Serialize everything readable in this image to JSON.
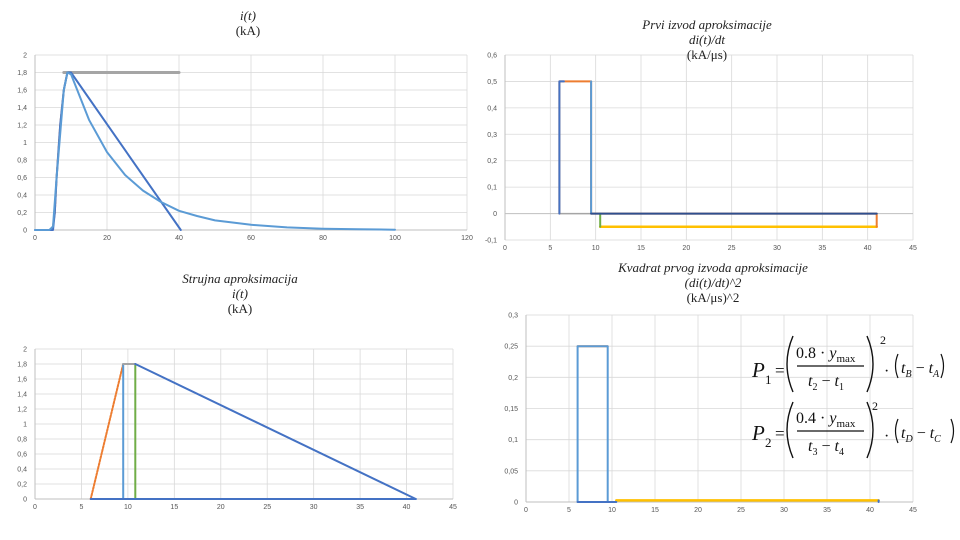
{
  "chart_data": [
    {
      "id": "c1",
      "type": "line",
      "title_lines": [
        "i(t)",
        "(kA)"
      ],
      "xlim": [
        0,
        120
      ],
      "ylim": [
        0,
        2
      ],
      "x_ticks": [
        "0",
        "20",
        "40",
        "60",
        "80",
        "100",
        "120"
      ],
      "y_ticks": [
        "0",
        "0,2",
        "0,4",
        "0,6",
        "0,8",
        "1",
        "1,2",
        "1,4",
        "1,6",
        "1,8",
        "2"
      ],
      "series": [
        {
          "color": "#a5a5a5",
          "width": 3,
          "points": [
            [
              8,
              1.8
            ],
            [
              40,
              1.8
            ]
          ]
        },
        {
          "color": "#ed7d31",
          "width": 2,
          "dash": "2,1.5",
          "points": [
            [
              4,
              0.0
            ],
            [
              4.5,
              0.01
            ],
            [
              5,
              0.04
            ],
            [
              5.5,
              0.2
            ],
            [
              6,
              0.6
            ],
            [
              7,
              1.2
            ],
            [
              8,
              1.6
            ],
            [
              9,
              1.8
            ],
            [
              10,
              1.8
            ]
          ]
        },
        {
          "color": "#4472c4",
          "width": 2,
          "points": [
            [
              0,
              0.0
            ],
            [
              5,
              0.0
            ],
            [
              5.5,
              0.2
            ],
            [
              6,
              0.6
            ],
            [
              7,
              1.2
            ],
            [
              8,
              1.6
            ],
            [
              9,
              1.8
            ],
            [
              10,
              1.8
            ],
            [
              40.5,
              0.0
            ]
          ]
        },
        {
          "color": "#5b9bd5",
          "width": 2,
          "points": [
            [
              0,
              0.0
            ],
            [
              4,
              0.0
            ],
            [
              5,
              0.04
            ],
            [
              6,
              0.6
            ],
            [
              8,
              1.6
            ],
            [
              9,
              1.8
            ],
            [
              10,
              1.78
            ],
            [
              15,
              1.26
            ],
            [
              20,
              0.89
            ],
            [
              25,
              0.63
            ],
            [
              30,
              0.45
            ],
            [
              35,
              0.32
            ],
            [
              40,
              0.22
            ],
            [
              45,
              0.16
            ],
            [
              50,
              0.11
            ],
            [
              60,
              0.06
            ],
            [
              70,
              0.03
            ],
            [
              80,
              0.015
            ],
            [
              90,
              0.008
            ],
            [
              100,
              0.004
            ]
          ]
        }
      ]
    },
    {
      "id": "c2",
      "type": "line",
      "title_lines": [
        "Prvi izvod aproksimacije",
        "di(t)/dt",
        "(kA/μs)"
      ],
      "xlim": [
        0,
        45
      ],
      "ylim": [
        -0.1,
        0.6
      ],
      "x_ticks": [
        "0",
        "5",
        "10",
        "15",
        "20",
        "25",
        "30",
        "35",
        "40",
        "45"
      ],
      "y_ticks": [
        "-0,1",
        "0",
        "0,1",
        "0,2",
        "0,3",
        "0,4",
        "0,5",
        "0,6"
      ],
      "series": [
        {
          "color": "#ffc000",
          "width": 2.5,
          "points": [
            [
              10.5,
              -0.05
            ],
            [
              41,
              -0.05
            ]
          ]
        },
        {
          "color": "#a5a5a5",
          "width": 1.5,
          "points": [
            [
              6,
              0.0
            ],
            [
              10,
              0.0
            ]
          ]
        },
        {
          "color": "#ed7d31",
          "width": 2,
          "points": [
            [
              6,
              0.0
            ],
            [
              6,
              0.5
            ],
            [
              9.5,
              0.5
            ],
            [
              9.5,
              0.0
            ],
            [
              41,
              0.0
            ],
            [
              41,
              -0.05
            ]
          ]
        },
        {
          "color": "#70ad47",
          "width": 2,
          "points": [
            [
              10.5,
              0.0
            ],
            [
              10.5,
              -0.05
            ]
          ]
        },
        {
          "color": "#4472c4",
          "width": 2,
          "points": [
            [
              6,
              0.0
            ],
            [
              6,
              0.5
            ],
            [
              6.5,
              0.5
            ]
          ]
        },
        {
          "color": "#5b9bd5",
          "width": 2,
          "points": [
            [
              9.5,
              0.5
            ],
            [
              9.5,
              0.0
            ]
          ]
        },
        {
          "color": "#2e4f8f",
          "width": 2,
          "points": [
            [
              9.5,
              0.0
            ],
            [
              41,
              0.0
            ]
          ]
        }
      ]
    },
    {
      "id": "c3",
      "type": "line",
      "title_lines": [
        "Strujna aproksimacija",
        "i(t)",
        "(kA)"
      ],
      "xlim": [
        0,
        45
      ],
      "ylim": [
        0,
        2
      ],
      "x_ticks": [
        "0",
        "5",
        "10",
        "15",
        "20",
        "25",
        "30",
        "35",
        "40",
        "45"
      ],
      "y_ticks": [
        "0",
        "0,2",
        "0,4",
        "0,6",
        "0,8",
        "1",
        "1,2",
        "1,4",
        "1,6",
        "1,8",
        "2"
      ],
      "series": [
        {
          "color": "#ed7d31",
          "width": 2,
          "dash": "2,1.5",
          "points": [
            [
              6,
              0.0
            ],
            [
              9.5,
              1.8
            ]
          ]
        },
        {
          "color": "#5b9bd5",
          "width": 2,
          "points": [
            [
              9.5,
              0.0
            ],
            [
              9.5,
              1.8
            ],
            [
              10,
              1.8
            ]
          ]
        },
        {
          "color": "#70ad47",
          "width": 2,
          "points": [
            [
              10.8,
              0.0
            ],
            [
              10.8,
              1.8
            ]
          ]
        },
        {
          "color": "#a5a5a5",
          "width": 2,
          "points": [
            [
              9.5,
              1.8
            ],
            [
              10.8,
              1.8
            ]
          ]
        },
        {
          "color": "#4472c4",
          "width": 2,
          "points": [
            [
              6,
              0.0
            ],
            [
              41,
              0.0
            ]
          ]
        },
        {
          "color": "#4472c4",
          "width": 2,
          "points": [
            [
              10.8,
              1.8
            ],
            [
              41,
              0.0
            ]
          ]
        }
      ]
    },
    {
      "id": "c4",
      "type": "line",
      "title_lines": [
        "Kvadrat prvog izvoda aproksimacije",
        "(di(t)/dt)^2",
        "(kA/μs)^2"
      ],
      "xlim": [
        0,
        45
      ],
      "ylim": [
        0,
        0.3
      ],
      "x_ticks": [
        "0",
        "5",
        "10",
        "15",
        "20",
        "25",
        "30",
        "35",
        "40",
        "45"
      ],
      "y_ticks": [
        "0",
        "0,05",
        "0,1",
        "0,15",
        "0,2",
        "0,25",
        "0,3"
      ],
      "series": [
        {
          "color": "#ffc000",
          "width": 2.5,
          "points": [
            [
              10.5,
              0.0025
            ],
            [
              41,
              0.0025
            ]
          ]
        },
        {
          "color": "#ed7d31",
          "width": 2,
          "points": [
            [
              6,
              0.25
            ],
            [
              9.5,
              0.25
            ]
          ]
        },
        {
          "color": "#5b9bd5",
          "width": 2,
          "points": [
            [
              6,
              0.0
            ],
            [
              6,
              0.25
            ],
            [
              9.5,
              0.25
            ],
            [
              9.5,
              0.0
            ]
          ]
        },
        {
          "color": "#4472c4",
          "width": 2,
          "points": [
            [
              6,
              0.0
            ],
            [
              10.5,
              0.0
            ]
          ]
        },
        {
          "color": "#4472c4",
          "width": 2,
          "points": [
            [
              41,
              0.0
            ],
            [
              41,
              0.0025
            ]
          ]
        }
      ]
    }
  ]
}
